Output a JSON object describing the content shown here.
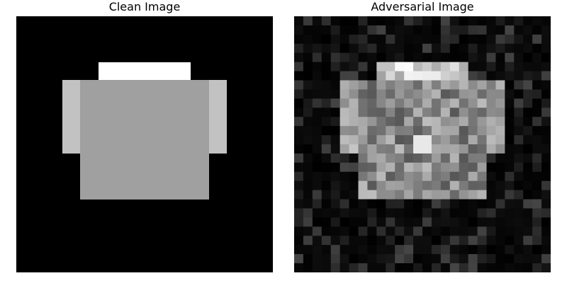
{
  "figure": {
    "left_title": "Clean Image",
    "right_title": "Adversarial Image"
  },
  "images": {
    "grid_size": 28,
    "background_color": "#000000",
    "clean_shirt_colors": {
      "collar": "#ffffff",
      "sleeves": "#c2c2c2",
      "body": "#a0a0a0"
    },
    "noise_seed": 1337
  }
}
